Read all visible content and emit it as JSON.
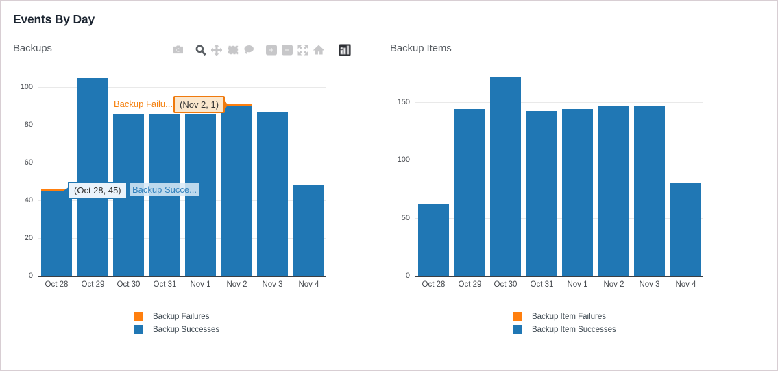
{
  "page": {
    "title": "Events By Day"
  },
  "colors": {
    "bar_blue": "#2077b4",
    "bar_orange": "#ff7f0e",
    "grid": "#e9e9e9",
    "axis_text": "#46494e",
    "page_border": "#d8ced3"
  },
  "toolbar": {
    "icons": [
      {
        "name": "camera",
        "active": false
      },
      {
        "name": "zoom",
        "active": true
      },
      {
        "name": "pan",
        "active": false
      },
      {
        "name": "box-select",
        "active": false
      },
      {
        "name": "lasso-select",
        "active": false
      },
      {
        "name": "zoom-in",
        "active": false
      },
      {
        "name": "zoom-out",
        "active": false
      },
      {
        "name": "autoscale",
        "active": false
      },
      {
        "name": "reset-home",
        "active": false
      },
      {
        "name": "plotly-logo",
        "active": false
      }
    ]
  },
  "chart_data": [
    {
      "type": "bar",
      "stacked": true,
      "title": "Backups",
      "categories": [
        "Oct 28",
        "Oct 29",
        "Oct 30",
        "Oct 31",
        "Nov 1",
        "Nov 2",
        "Nov 3",
        "Nov 4"
      ],
      "series": [
        {
          "name": "Backup Successes",
          "color": "#2077b4",
          "values": [
            45,
            105,
            86,
            86,
            86,
            90,
            87,
            48
          ]
        },
        {
          "name": "Backup Failures",
          "color": "#ff7f0e",
          "values": [
            1,
            0,
            0,
            0,
            0,
            1,
            0,
            0
          ]
        }
      ],
      "legend": [
        {
          "label": "Backup Failures",
          "color": "#ff7f0e"
        },
        {
          "label": "Backup Successes",
          "color": "#2077b4"
        }
      ],
      "xlabel": "",
      "ylabel": "",
      "yticks": [
        0,
        20,
        40,
        60,
        80,
        100
      ],
      "ylim": [
        0,
        110
      ],
      "grid": true,
      "legend_position": "bottom",
      "annotations": {
        "failure_hover": {
          "trace_text": "Backup Failu...",
          "value_text": "(Nov 2, 1)",
          "points_to": "Nov 2"
        },
        "success_hover": {
          "trace_text": "Backup Succe...",
          "value_text": "(Oct 28, 45)",
          "points_to": "Oct 28"
        }
      }
    },
    {
      "type": "bar",
      "stacked": true,
      "title": "Backup Items",
      "categories": [
        "Oct 28",
        "Oct 29",
        "Oct 30",
        "Oct 31",
        "Nov 1",
        "Nov 2",
        "Nov 3",
        "Nov 4"
      ],
      "series": [
        {
          "name": "Backup Item Successes",
          "color": "#2077b4",
          "values": [
            62,
            144,
            171,
            142,
            144,
            147,
            146,
            80
          ]
        },
        {
          "name": "Backup Item Failures",
          "color": "#ff7f0e",
          "values": [
            0,
            0,
            0,
            0,
            0,
            0,
            0,
            0
          ]
        }
      ],
      "legend": [
        {
          "label": "Backup Item Failures",
          "color": "#ff7f0e"
        },
        {
          "label": "Backup Item Successes",
          "color": "#2077b4"
        }
      ],
      "xlabel": "",
      "ylabel": "",
      "yticks": [
        0,
        50,
        100,
        150
      ],
      "ylim": [
        0,
        180
      ],
      "grid": true,
      "legend_position": "bottom"
    }
  ]
}
